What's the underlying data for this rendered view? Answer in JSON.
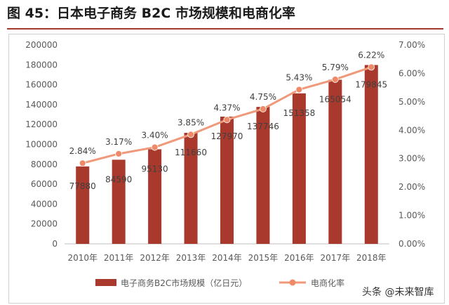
{
  "page": {
    "title": "图 45：日本电子商务 B2C 市场规模和电商化率",
    "watermark": "头条 @未来智库"
  },
  "chart_data": {
    "type": "bar",
    "categories": [
      "2010年",
      "2011年",
      "2012年",
      "2013年",
      "2014年",
      "2015年",
      "2016年",
      "2017年",
      "2018年"
    ],
    "series": [
      {
        "name": "电子商务B2C市场规模（亿日元）",
        "type": "bar",
        "axis": "left",
        "values": [
          77880,
          84590,
          95130,
          111660,
          127970,
          137746,
          151358,
          165054,
          179845
        ],
        "labels": [
          "77880",
          "84590",
          "95130",
          "111660",
          "127970",
          "137746",
          "151358",
          "165054",
          "179845"
        ]
      },
      {
        "name": "电商化率",
        "type": "line",
        "axis": "right",
        "values": [
          2.84,
          3.17,
          3.4,
          3.85,
          4.37,
          4.75,
          5.43,
          5.79,
          6.22
        ],
        "labels": [
          "2.84%",
          "3.17%",
          "3.40%",
          "3.85%",
          "4.37%",
          "4.75%",
          "5.43%",
          "5.79%",
          "6.22%"
        ]
      }
    ],
    "y_left": {
      "range": [
        0,
        200000
      ],
      "ticks": [
        "0",
        "20000",
        "40000",
        "60000",
        "80000",
        "100000",
        "120000",
        "140000",
        "160000",
        "180000",
        "200000"
      ]
    },
    "y_right": {
      "range": [
        0,
        7
      ],
      "ticks": [
        "0.00%",
        "1.00%",
        "2.00%",
        "3.00%",
        "4.00%",
        "5.00%",
        "6.00%",
        "7.00%"
      ]
    },
    "grid": false,
    "legend_position": "bottom",
    "colors": {
      "bar": "#a8392c",
      "line": "#f0997a",
      "marker": "#ee8a67",
      "text": "#595959",
      "axis": "#bfbfbf"
    }
  }
}
